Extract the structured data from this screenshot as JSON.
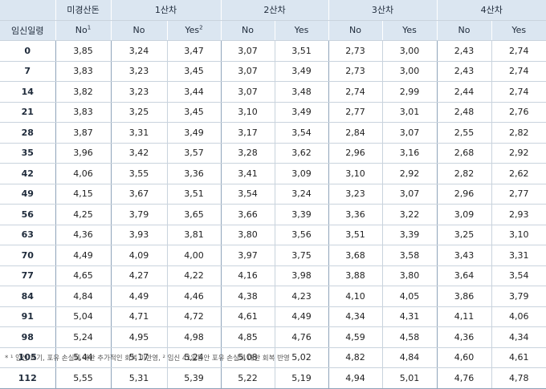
{
  "header": {
    "group_labels": [
      "미경산돈",
      "1산차",
      "2산차",
      "3산차",
      "4산차"
    ],
    "row_label": "임신일령",
    "sub_no": "No",
    "sub_yes": "Yes",
    "sup1": "1",
    "sup2": "2"
  },
  "rows": [
    [
      "0",
      "3,85",
      "3,24",
      "3,47",
      "3,07",
      "3,51",
      "2,73",
      "3,00",
      "2,43",
      "2,74"
    ],
    [
      "7",
      "3,83",
      "3,23",
      "3,45",
      "3,07",
      "3,49",
      "2,73",
      "3,00",
      "2,43",
      "2,74"
    ],
    [
      "14",
      "3,82",
      "3,23",
      "3,44",
      "3,07",
      "3,48",
      "2,74",
      "2,99",
      "2,44",
      "2,74"
    ],
    [
      "21",
      "3,83",
      "3,25",
      "3,45",
      "3,10",
      "3,49",
      "2,77",
      "3,01",
      "2,48",
      "2,76"
    ],
    [
      "28",
      "3,87",
      "3,31",
      "3,49",
      "3,17",
      "3,54",
      "2,84",
      "3,07",
      "2,55",
      "2,82"
    ],
    [
      "35",
      "3,96",
      "3,42",
      "3,57",
      "3,28",
      "3,62",
      "2,96",
      "3,16",
      "2,68",
      "2,92"
    ],
    [
      "42",
      "4,06",
      "3,55",
      "3,36",
      "3,41",
      "3,09",
      "3,10",
      "2,92",
      "2,82",
      "2,62"
    ],
    [
      "49",
      "4,15",
      "3,67",
      "3,51",
      "3,54",
      "3,24",
      "3,23",
      "3,07",
      "2,96",
      "2,77"
    ],
    [
      "56",
      "4,25",
      "3,79",
      "3,65",
      "3,66",
      "3,39",
      "3,36",
      "3,22",
      "3,09",
      "2,93"
    ],
    [
      "63",
      "4,36",
      "3,93",
      "3,81",
      "3,80",
      "3,56",
      "3,51",
      "3,39",
      "3,25",
      "3,10"
    ],
    [
      "70",
      "4,49",
      "4,09",
      "4,00",
      "3,97",
      "3,75",
      "3,68",
      "3,58",
      "3,43",
      "3,31"
    ],
    [
      "77",
      "4,65",
      "4,27",
      "4,22",
      "4,16",
      "3,98",
      "3,88",
      "3,80",
      "3,64",
      "3,54"
    ],
    [
      "84",
      "4,84",
      "4,49",
      "4,46",
      "4,38",
      "4,23",
      "4,10",
      "4,05",
      "3,86",
      "3,79"
    ],
    [
      "91",
      "5,04",
      "4,71",
      "4,72",
      "4,61",
      "4,49",
      "4,34",
      "4,31",
      "4,11",
      "4,06"
    ],
    [
      "98",
      "5,24",
      "4,95",
      "4,98",
      "4,85",
      "4,76",
      "4,59",
      "4,58",
      "4,36",
      "4,34"
    ],
    [
      "105",
      "5,44",
      "5,17",
      "5,24",
      "5,08",
      "5,02",
      "4,82",
      "4,84",
      "4,60",
      "4,61"
    ],
    [
      "112",
      "5,55",
      "5,31",
      "5,39",
      "5,22",
      "5,19",
      "4,94",
      "5,01",
      "4,76",
      "4,78"
    ]
  ],
  "footnote": "* ¹ 임신 초기, 포유 손실에 대한 추가적인 회복 미반영, ² 임신 41일동안 포유 손실에 대한 회복 반영"
}
